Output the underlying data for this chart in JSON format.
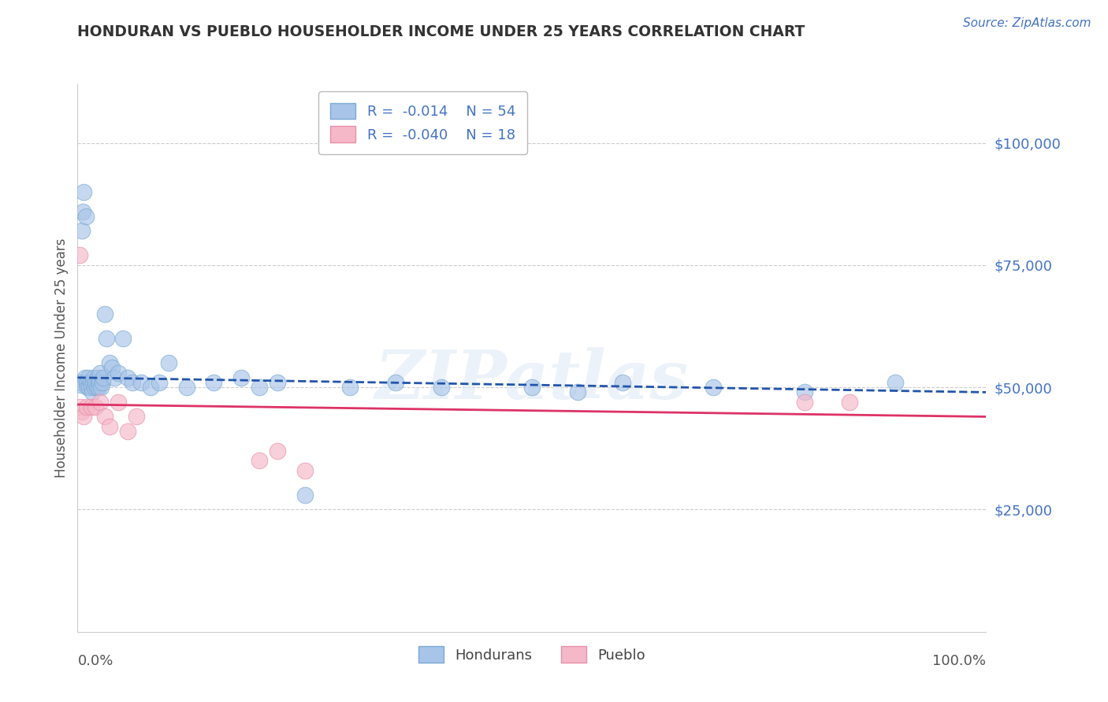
{
  "title": "HONDURAN VS PUEBLO HOUSEHOLDER INCOME UNDER 25 YEARS CORRELATION CHART",
  "source": "Source: ZipAtlas.com",
  "ylabel": "Householder Income Under 25 years",
  "xlim": [
    0,
    100
  ],
  "ylim": [
    0,
    112000
  ],
  "yticks": [
    0,
    25000,
    50000,
    75000,
    100000
  ],
  "ytick_labels": [
    "",
    "$25,000",
    "$50,000",
    "$75,000",
    "$100,000"
  ],
  "honduran_R": "-0.014",
  "honduran_N": "54",
  "pueblo_R": "-0.040",
  "pueblo_N": "18",
  "honduran_color": "#a8c4e8",
  "honduran_edge_color": "#7aaad4",
  "pueblo_color": "#f5b8c8",
  "pueblo_edge_color": "#e890aa",
  "honduran_line_color": "#2255aa",
  "pueblo_line_color": "#dd3366",
  "label_color": "#4472c4",
  "title_color": "#333333",
  "watermark": "ZIPatlas",
  "hon_x": [
    0.3,
    0.4,
    0.5,
    0.6,
    0.7,
    0.8,
    0.9,
    1.0,
    1.1,
    1.2,
    1.3,
    1.4,
    1.5,
    1.6,
    1.7,
    1.8,
    1.9,
    2.0,
    2.1,
    2.2,
    2.3,
    2.4,
    2.5,
    2.6,
    2.7,
    2.8,
    3.0,
    3.2,
    3.5,
    3.8,
    4.0,
    4.5,
    5.0,
    5.5,
    6.0,
    7.0,
    8.0,
    9.0,
    10.0,
    12.0,
    15.0,
    18.0,
    20.0,
    22.0,
    25.0,
    30.0,
    35.0,
    40.0,
    50.0,
    55.0,
    60.0,
    70.0,
    80.0,
    90.0
  ],
  "hon_y": [
    51000,
    50500,
    82000,
    86000,
    90000,
    52000,
    85000,
    51000,
    50000,
    52000,
    50000,
    51000,
    50000,
    49000,
    51000,
    52000,
    50000,
    51000,
    50000,
    52000,
    50000,
    51000,
    53000,
    50000,
    51000,
    52000,
    65000,
    60000,
    55000,
    54000,
    52000,
    53000,
    60000,
    52000,
    51000,
    51000,
    50000,
    51000,
    55000,
    50000,
    51000,
    52000,
    50000,
    51000,
    28000,
    50000,
    51000,
    50000,
    50000,
    49000,
    51000,
    50000,
    49000,
    51000
  ],
  "pue_x": [
    0.2,
    0.3,
    0.5,
    0.7,
    1.0,
    1.5,
    2.0,
    2.5,
    3.0,
    3.5,
    4.5,
    5.5,
    6.5,
    20.0,
    22.0,
    25.0,
    80.0,
    85.0
  ],
  "pue_y": [
    77000,
    46000,
    45000,
    44000,
    46000,
    46000,
    46000,
    47000,
    44000,
    42000,
    47000,
    41000,
    44000,
    35000,
    37000,
    33000,
    47000,
    47000
  ],
  "hon_trend_x": [
    0,
    100
  ],
  "hon_trend_y": [
    52000,
    49000
  ],
  "pue_trend_x": [
    0,
    100
  ],
  "pue_trend_y": [
    46500,
    44000
  ]
}
